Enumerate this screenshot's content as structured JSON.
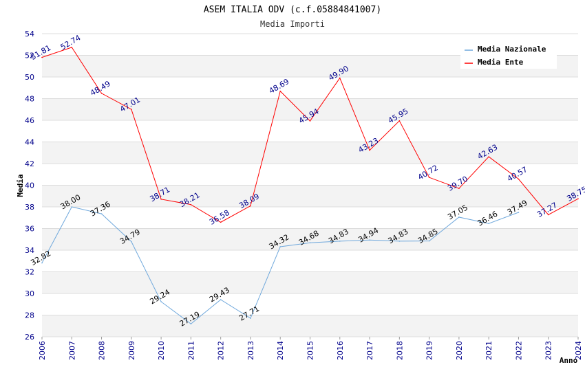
{
  "chart_data": {
    "type": "line",
    "title": "ASEM ITALIA ODV (c.f.05884841007)",
    "subtitle": "Media Importi",
    "xlabel": "Anno",
    "ylabel": "Media",
    "ylim": [
      26,
      54
    ],
    "ytick_step": 2,
    "grid": "horizontal bands",
    "legend_position": "top-right",
    "x": [
      "2006",
      "2007",
      "2008",
      "2009",
      "2010",
      "2011",
      "2012",
      "2013",
      "2014",
      "2015",
      "2016",
      "2017",
      "2018",
      "2019",
      "2020",
      "2021",
      "2022",
      "2023",
      "2024"
    ],
    "series": [
      {
        "name": "Media Nazionale",
        "color": "#6fa8dc",
        "label_color": "#000000",
        "values": [
          32.82,
          38.0,
          37.36,
          34.79,
          29.24,
          27.19,
          29.43,
          27.71,
          34.32,
          34.68,
          34.83,
          34.94,
          34.83,
          34.85,
          37.05,
          36.46,
          37.49,
          null,
          null
        ],
        "labels": [
          "32.82",
          "38.00",
          "37.36",
          "34.79",
          "29.24",
          "27.19",
          "29.43",
          "27.71",
          "34.32",
          "34.68",
          "34.83",
          "34.94",
          "34.83",
          "34.85",
          "37.05",
          "36.46",
          "37.49",
          "",
          ""
        ]
      },
      {
        "name": "Media Ente",
        "color": "#ff0000",
        "label_color": "#00008b",
        "values": [
          51.81,
          52.74,
          48.49,
          47.01,
          38.71,
          38.21,
          36.58,
          38.09,
          48.69,
          45.94,
          49.9,
          43.23,
          45.95,
          40.72,
          39.7,
          42.63,
          40.57,
          37.27,
          38.75
        ],
        "labels": [
          "51.81",
          "52.74",
          "48.49",
          "47.01",
          "38.71",
          "38.21",
          "36.58",
          "38.09",
          "48.69",
          "45.94",
          "49.90",
          "43.23",
          "45.95",
          "40.72",
          "39.70",
          "42.63",
          "40.57",
          "37.27",
          "38.75"
        ]
      }
    ]
  }
}
